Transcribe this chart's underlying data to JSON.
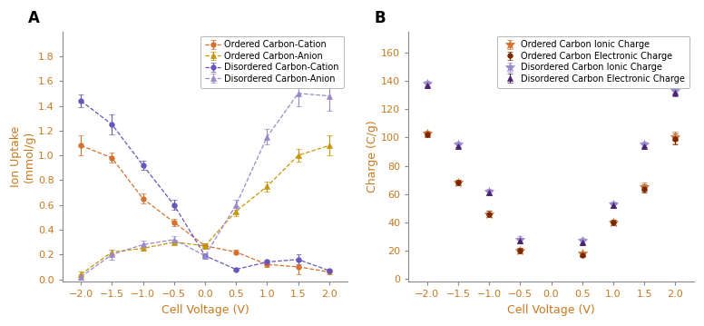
{
  "panel_A": {
    "title": "A",
    "xlabel": "Cell Voltage (V)",
    "ylabel": "Ion Uptake\n(mmol/g)",
    "xlim": [
      -2.3,
      2.3
    ],
    "ylim": [
      -0.02,
      2.0
    ],
    "yticks": [
      0.0,
      0.2,
      0.4,
      0.6,
      0.8,
      1.0,
      1.2,
      1.4,
      1.6,
      1.8
    ],
    "xticks": [
      -2.0,
      -1.5,
      -1.0,
      -0.5,
      0.0,
      0.5,
      1.0,
      1.5,
      2.0
    ],
    "series": [
      {
        "label": "Ordered Carbon-Cation",
        "color": "#D4712E",
        "marker": "o",
        "linestyle": "--",
        "x": [
          -2.0,
          -1.5,
          -1.0,
          -0.5,
          0.0,
          0.5,
          1.0,
          1.5,
          2.0
        ],
        "y": [
          1.08,
          0.98,
          0.65,
          0.46,
          0.27,
          0.22,
          0.12,
          0.1,
          0.06
        ],
        "yerr": [
          0.08,
          0.04,
          0.04,
          0.03,
          0.02,
          0.02,
          0.02,
          0.06,
          0.02
        ]
      },
      {
        "label": "Ordered Carbon-Anion",
        "color": "#C8960A",
        "marker": "^",
        "linestyle": "--",
        "x": [
          -2.0,
          -1.5,
          -1.0,
          -0.5,
          0.0,
          0.5,
          1.0,
          1.5,
          2.0
        ],
        "y": [
          0.04,
          0.22,
          0.25,
          0.3,
          0.27,
          0.55,
          0.75,
          1.0,
          1.08
        ],
        "yerr": [
          0.02,
          0.02,
          0.02,
          0.02,
          0.02,
          0.04,
          0.04,
          0.05,
          0.08
        ]
      },
      {
        "label": "Disordered Carbon-Cation",
        "color": "#6655BB",
        "marker": "o",
        "linestyle": "--",
        "x": [
          -2.0,
          -1.5,
          -1.0,
          -0.5,
          0.0,
          0.5,
          1.0,
          1.5,
          2.0
        ],
        "y": [
          1.44,
          1.25,
          0.92,
          0.6,
          0.19,
          0.08,
          0.14,
          0.16,
          0.07
        ],
        "yerr": [
          0.05,
          0.08,
          0.04,
          0.04,
          0.02,
          0.01,
          0.02,
          0.04,
          0.01
        ]
      },
      {
        "label": "Disordered Carbon-Anion",
        "color": "#9988CC",
        "marker": "^",
        "linestyle": "--",
        "x": [
          -2.0,
          -1.5,
          -1.0,
          -0.5,
          0.0,
          0.5,
          1.0,
          1.5,
          2.0
        ],
        "y": [
          0.02,
          0.2,
          0.28,
          0.32,
          0.19,
          0.6,
          1.15,
          1.5,
          1.48
        ],
        "yerr": [
          0.02,
          0.04,
          0.03,
          0.03,
          0.02,
          0.04,
          0.06,
          0.1,
          0.12
        ]
      }
    ]
  },
  "panel_B": {
    "title": "B",
    "xlabel": "Cell Voltage (V)",
    "ylabel": "Charge (C/g)",
    "xlim": [
      -2.3,
      2.3
    ],
    "ylim": [
      -2,
      175
    ],
    "yticks": [
      0,
      20,
      40,
      60,
      80,
      100,
      120,
      140,
      160
    ],
    "xticks": [
      -2.0,
      -1.5,
      -1.0,
      -0.5,
      0.0,
      0.5,
      1.0,
      1.5,
      2.0
    ],
    "series": [
      {
        "label": "Ordered Carbon Ionic Charge",
        "color": "#D4712E",
        "marker": "*",
        "x": [
          -2.0,
          -1.5,
          -1.0,
          -0.5,
          0.5,
          1.0,
          1.5,
          2.0
        ],
        "y": [
          103,
          68,
          46,
          20,
          18,
          40,
          65,
          100
        ],
        "yerr": [
          2,
          2,
          2,
          2,
          1,
          2,
          3,
          4
        ]
      },
      {
        "label": "Ordered Carbon Electronic Charge",
        "color": "#7A2800",
        "marker": "o",
        "x": [
          -2.0,
          -1.5,
          -1.0,
          -0.5,
          0.5,
          1.0,
          1.5,
          2.0
        ],
        "y": [
          102,
          68,
          46,
          20,
          17,
          40,
          64,
          99
        ],
        "yerr": [
          2,
          2,
          2,
          2,
          1,
          2,
          3,
          4
        ]
      },
      {
        "label": "Disordered Carbon Ionic Charge",
        "color": "#9988CC",
        "marker": "*",
        "x": [
          -2.0,
          -1.5,
          -1.0,
          -0.5,
          0.5,
          1.0,
          1.5,
          2.0
        ],
        "y": [
          138,
          95,
          62,
          28,
          27,
          53,
          95,
          133
        ],
        "yerr": [
          2,
          2,
          2,
          2,
          2,
          2,
          2,
          3
        ]
      },
      {
        "label": "Disordered Carbon Electronic Charge",
        "color": "#4A2070",
        "marker": "^",
        "x": [
          -2.0,
          -1.5,
          -1.0,
          -0.5,
          0.5,
          1.0,
          1.5,
          2.0
        ],
        "y": [
          137,
          94,
          61,
          27,
          26,
          52,
          94,
          132
        ],
        "yerr": [
          2,
          2,
          2,
          2,
          2,
          2,
          2,
          3
        ]
      }
    ]
  },
  "tick_label_color": "#C87820",
  "axis_label_color": "#C87820",
  "axis_label_fontsize": 9,
  "tick_fontsize": 8,
  "legend_fontsize": 7,
  "marker_size": 4,
  "star_size": 7,
  "line_width": 0.9
}
